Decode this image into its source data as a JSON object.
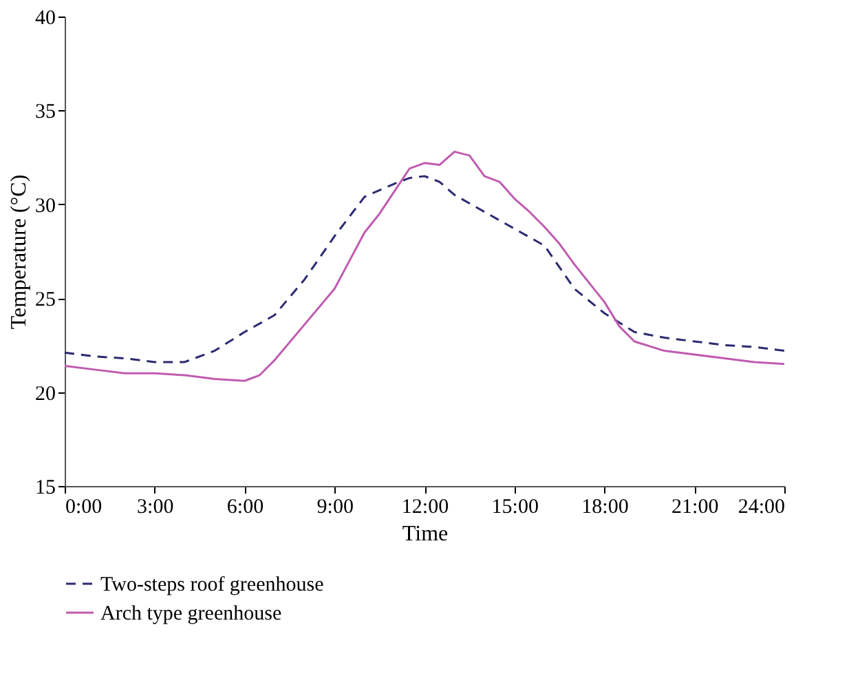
{
  "chart_data": {
    "type": "line",
    "xlabel": "Time",
    "ylabel": "Temperature (°C)",
    "xlim": [
      0,
      24
    ],
    "xticks": [
      {
        "value": 0,
        "label": "0:00"
      },
      {
        "value": 3,
        "label": "3:00"
      },
      {
        "value": 6,
        "label": "6:00"
      },
      {
        "value": 9,
        "label": "9:00"
      },
      {
        "value": 12,
        "label": "12:00"
      },
      {
        "value": 15,
        "label": "15:00"
      },
      {
        "value": 18,
        "label": "18:00"
      },
      {
        "value": 21,
        "label": "21:00"
      },
      {
        "value": 24,
        "label": "24:00"
      }
    ],
    "ylim": [
      15,
      40
    ],
    "yticks": [
      15,
      20,
      25,
      30,
      35,
      40
    ],
    "grid": false,
    "legend": "bottom",
    "series": [
      {
        "name": "Two-steps roof greenhouse",
        "color": "#2b2a72",
        "line_style": "dashed",
        "x": [
          0,
          1,
          2,
          3,
          4,
          5,
          6,
          7,
          8,
          9,
          10,
          11,
          11.5,
          12,
          12.5,
          13,
          14,
          15,
          16,
          17,
          18,
          19,
          20,
          21,
          22,
          23,
          24
        ],
        "values": [
          22.1,
          21.9,
          21.8,
          21.6,
          21.6,
          22.2,
          23.2,
          24.1,
          26.0,
          28.3,
          30.4,
          31.1,
          31.4,
          31.5,
          31.2,
          30.5,
          29.6,
          28.7,
          27.8,
          25.5,
          24.2,
          23.2,
          22.9,
          22.7,
          22.5,
          22.4,
          22.2
        ]
      },
      {
        "name": "Arch type greenhouse",
        "color": "#c05bb0",
        "line_style": "solid",
        "x": [
          0,
          1,
          2,
          3,
          4,
          5,
          6,
          6.5,
          7,
          8,
          9,
          9.5,
          10,
          10.5,
          11,
          11.5,
          12,
          12.5,
          13,
          13.5,
          14,
          14.5,
          15,
          15.5,
          16,
          16.5,
          17,
          17.5,
          18,
          18.5,
          19,
          20,
          21,
          22,
          23,
          24
        ],
        "values": [
          21.4,
          21.2,
          21.0,
          21.0,
          20.9,
          20.7,
          20.6,
          20.9,
          21.7,
          23.6,
          25.5,
          27.0,
          28.5,
          29.5,
          30.7,
          31.9,
          32.2,
          32.1,
          32.8,
          32.6,
          31.5,
          31.2,
          30.3,
          29.6,
          28.8,
          27.9,
          26.8,
          25.8,
          24.8,
          23.5,
          22.7,
          22.2,
          22.0,
          21.8,
          21.6,
          21.5
        ]
      }
    ]
  }
}
